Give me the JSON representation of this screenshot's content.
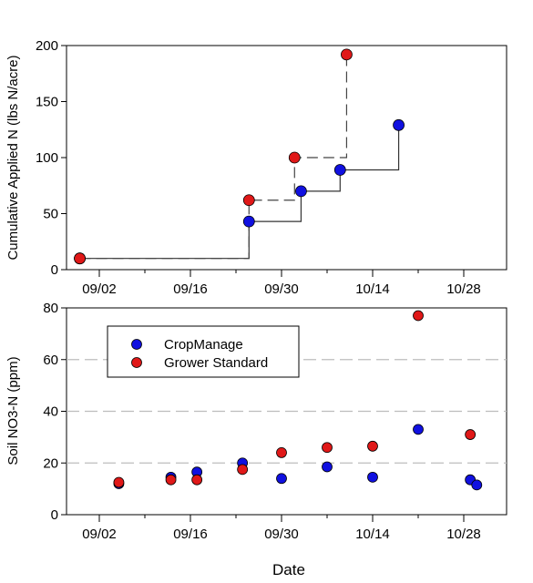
{
  "chart_data": [
    {
      "type": "line",
      "title": "",
      "xlabel": "",
      "ylabel": "Cumulative Applied N (lbs N/acre)",
      "x_ticks": [
        "09/02",
        "09/16",
        "09/30",
        "10/14",
        "10/28"
      ],
      "ylim": [
        0,
        200
      ],
      "y_ticks": [
        "0",
        "50",
        "100",
        "150",
        "200"
      ],
      "grid": false,
      "legend": "none",
      "series": [
        {
          "color": "#1010e0",
          "line_style": "solid",
          "points": [
            [
              "08/30",
              10
            ],
            [
              "09/25",
              43
            ],
            [
              "10/03",
              70
            ],
            [
              "10/09",
              89
            ],
            [
              "10/18",
              129
            ]
          ]
        },
        {
          "color": "#e01818",
          "line_style": "dashed",
          "points": [
            [
              "08/30",
              10
            ],
            [
              "09/25",
              62
            ],
            [
              "10/02",
              100
            ],
            [
              "10/10",
              192
            ]
          ]
        }
      ]
    },
    {
      "type": "scatter",
      "title": "",
      "xlabel": "Date",
      "ylabel": "Soil NO3-N (ppm)",
      "x_ticks": [
        "09/02",
        "09/16",
        "09/30",
        "10/14",
        "10/28"
      ],
      "ylim": [
        0,
        80
      ],
      "y_ticks": [
        "0",
        "20",
        "40",
        "60",
        "80"
      ],
      "grid": "horizontal dashed",
      "legend": "top-left",
      "series": [
        {
          "name": "CropManage",
          "color": "#1010e0",
          "points": [
            [
              "09/05",
              12
            ],
            [
              "09/13",
              14.5
            ],
            [
              "09/17",
              16.5
            ],
            [
              "09/24",
              20
            ],
            [
              "09/30",
              14
            ],
            [
              "10/07",
              18.5
            ],
            [
              "10/14",
              14.5
            ],
            [
              "10/21",
              33
            ],
            [
              "10/29",
              13.5
            ],
            [
              "10/30",
              11.5
            ]
          ]
        },
        {
          "name": "Grower Standard",
          "color": "#e01818",
          "points": [
            [
              "09/05",
              12.5
            ],
            [
              "09/13",
              13.5
            ],
            [
              "09/17",
              13.5
            ],
            [
              "09/24",
              17.5
            ],
            [
              "09/30",
              24
            ],
            [
              "10/07",
              26
            ],
            [
              "10/14",
              26.5
            ],
            [
              "10/21",
              77
            ],
            [
              "10/29",
              31
            ]
          ]
        }
      ]
    }
  ]
}
